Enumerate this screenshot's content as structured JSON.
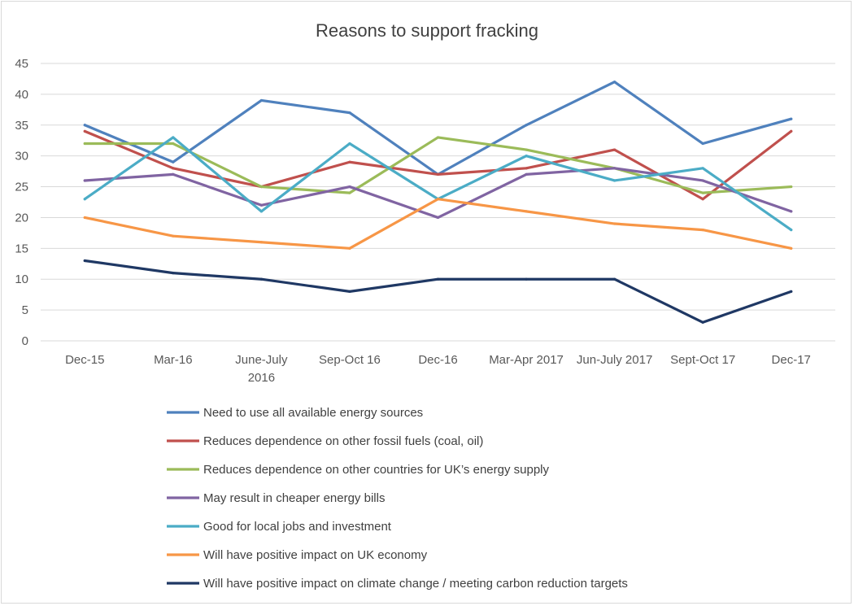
{
  "chart_data": {
    "type": "line",
    "title": "Reasons to support fracking",
    "categories": [
      "Dec-15",
      "Mar-16",
      "June-July 2016",
      "Sep-Oct 16",
      "Dec-16",
      "Mar-Apr 2017",
      "Jun-July 2017",
      "Sept-Oct 17",
      "Dec-17"
    ],
    "category_lines": [
      [
        "Dec-15"
      ],
      [
        "Mar-16"
      ],
      [
        "June-July",
        "2016"
      ],
      [
        "Sep-Oct 16"
      ],
      [
        "Dec-16"
      ],
      [
        "Mar-Apr 2017"
      ],
      [
        "Jun-July 2017"
      ],
      [
        "Sept-Oct 17"
      ],
      [
        "Dec-17"
      ]
    ],
    "ylim": [
      0,
      45
    ],
    "yticks": [
      0,
      5,
      10,
      15,
      20,
      25,
      30,
      35,
      40,
      45
    ],
    "grid": true,
    "legend_placement": "bottom",
    "series": [
      {
        "name": "Need to use all available energy sources",
        "color": "#4F81BD",
        "values": [
          35,
          29,
          39,
          37,
          27,
          35,
          42,
          32,
          36
        ]
      },
      {
        "name": "Reduces dependence on other fossil fuels (coal, oil)",
        "color": "#C0504D",
        "values": [
          34,
          28,
          25,
          29,
          27,
          28,
          31,
          23,
          34
        ]
      },
      {
        "name": "Reduces dependence on other countries for UK’s energy supply",
        "color": "#9BBB59",
        "values": [
          32,
          32,
          25,
          24,
          33,
          31,
          28,
          24,
          25
        ]
      },
      {
        "name": "May result in cheaper energy bills",
        "color": "#8064A2",
        "values": [
          26,
          27,
          22,
          25,
          20,
          27,
          28,
          26,
          21
        ]
      },
      {
        "name": "Good for local jobs and investment",
        "color": "#4BACC6",
        "values": [
          23,
          33,
          21,
          32,
          23,
          30,
          26,
          28,
          18
        ]
      },
      {
        "name": "Will have positive impact on UK economy",
        "color": "#F79646",
        "values": [
          20,
          17,
          16,
          15,
          23,
          21,
          19,
          18,
          15
        ]
      },
      {
        "name": "Will have positive impact on climate change / meeting carbon reduction targets",
        "color": "#1F3864",
        "values": [
          13,
          11,
          10,
          8,
          10,
          10,
          10,
          3,
          8
        ]
      }
    ]
  }
}
